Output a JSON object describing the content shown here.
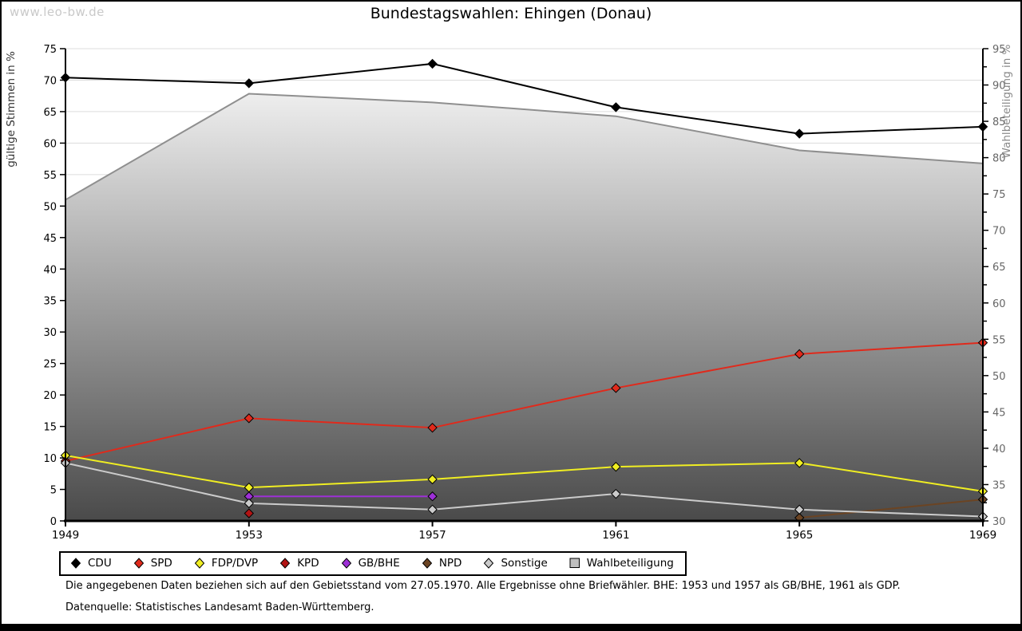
{
  "watermark": "www.leo-bw.de",
  "notes": {
    "line1": "Die angegebenen Daten beziehen sich auf den Gebietsstand vom 27.05.1970. Alle Ergebnisse ohne Briefwähler. BHE: 1953 und 1957 als GB/BHE, 1961 als GDP.",
    "line2": "Datenquelle: Statistisches Landesamt Baden-Württemberg."
  },
  "chart_data": {
    "type": "line",
    "title": "Bundestagswahlen: Ehingen (Donau)",
    "categories": [
      "1949",
      "1953",
      "1957",
      "1961",
      "1965",
      "1969"
    ],
    "left_axis": {
      "label": "gültige Stimmen in %",
      "min": 0,
      "max": 75,
      "tick_step": 5
    },
    "right_axis": {
      "label": "Wahlbeteiligung in %",
      "min": 30,
      "max": 95,
      "tick_step": 5,
      "minor_tick_step": 2.5
    },
    "grid": true,
    "legend_position": "bottom",
    "area_gradient": {
      "top": "#ffffff",
      "bottom": "#4a4a4a"
    },
    "series": [
      {
        "name": "CDU",
        "axis": "left",
        "kind": "line",
        "marker": "diamond",
        "color": "#000000",
        "values": [
          70.4,
          69.5,
          72.6,
          65.7,
          61.5,
          62.6
        ]
      },
      {
        "name": "SPD",
        "axis": "left",
        "kind": "line",
        "marker": "diamond",
        "color": "#e02a1c",
        "values": [
          9.5,
          16.3,
          14.8,
          21.1,
          26.5,
          28.3
        ]
      },
      {
        "name": "FDP/DVP",
        "axis": "left",
        "kind": "line",
        "marker": "diamond",
        "color": "#f0ee22",
        "values": [
          10.4,
          5.3,
          6.6,
          8.6,
          9.2,
          4.7
        ]
      },
      {
        "name": "KPD",
        "axis": "left",
        "kind": "line",
        "marker": "diamond",
        "color": "#b21414",
        "values": [
          null,
          1.2,
          null,
          null,
          null,
          null
        ]
      },
      {
        "name": "GB/BHE",
        "axis": "left",
        "kind": "line",
        "marker": "diamond",
        "color": "#9d30d6",
        "values": [
          null,
          3.9,
          3.9,
          null,
          null,
          null
        ]
      },
      {
        "name": "NPD",
        "axis": "left",
        "kind": "line",
        "marker": "diamond",
        "color": "#6b4423",
        "values": [
          null,
          null,
          null,
          null,
          0.5,
          3.4
        ]
      },
      {
        "name": "Sonstige",
        "axis": "left",
        "kind": "line",
        "marker": "diamond",
        "color": "#cbcbcb",
        "values": [
          9.2,
          2.8,
          1.8,
          4.3,
          1.8,
          0.7
        ]
      },
      {
        "name": "Wahlbeteiligung",
        "axis": "right",
        "kind": "area",
        "marker": "square",
        "color": "#8f8f8f",
        "legend_fill": "#bfbfbf",
        "values": [
          74.2,
          88.8,
          87.6,
          85.7,
          81.0,
          79.2
        ]
      }
    ]
  }
}
